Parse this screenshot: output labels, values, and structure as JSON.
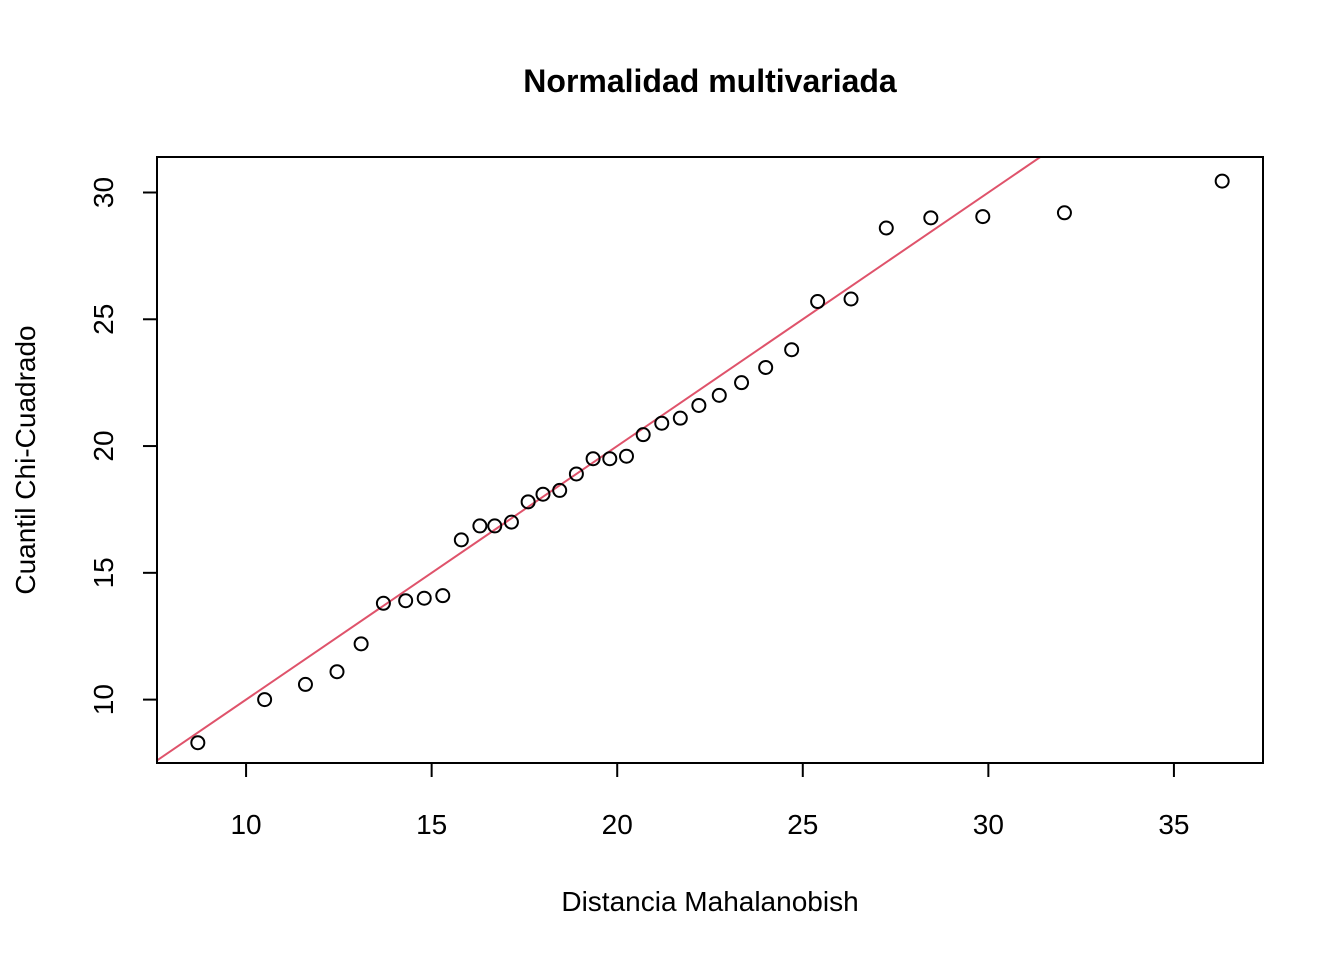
{
  "chart_data": {
    "type": "scatter",
    "title": "Normalidad multivariada",
    "xlabel": "Distancia Mahalanobish",
    "ylabel": "Cuantil Chi-Cuadrado",
    "xlim": [
      7.6,
      37.4
    ],
    "ylim": [
      7.5,
      31.4
    ],
    "xticks": [
      10,
      15,
      20,
      25,
      30,
      35
    ],
    "yticks": [
      10,
      15,
      20,
      25,
      30
    ],
    "grid": false,
    "points": [
      {
        "x": 8.7,
        "y": 8.3
      },
      {
        "x": 10.5,
        "y": 10.0
      },
      {
        "x": 11.6,
        "y": 10.6
      },
      {
        "x": 12.45,
        "y": 11.1
      },
      {
        "x": 13.1,
        "y": 12.2
      },
      {
        "x": 13.7,
        "y": 13.8
      },
      {
        "x": 14.3,
        "y": 13.9
      },
      {
        "x": 14.8,
        "y": 14.0
      },
      {
        "x": 15.3,
        "y": 14.1
      },
      {
        "x": 15.8,
        "y": 16.3
      },
      {
        "x": 16.3,
        "y": 16.85
      },
      {
        "x": 16.7,
        "y": 16.85
      },
      {
        "x": 17.15,
        "y": 17.0
      },
      {
        "x": 17.6,
        "y": 17.8
      },
      {
        "x": 18.0,
        "y": 18.1
      },
      {
        "x": 18.45,
        "y": 18.25
      },
      {
        "x": 18.9,
        "y": 18.9
      },
      {
        "x": 19.35,
        "y": 19.5
      },
      {
        "x": 19.8,
        "y": 19.5
      },
      {
        "x": 20.25,
        "y": 19.6
      },
      {
        "x": 20.7,
        "y": 20.45
      },
      {
        "x": 21.2,
        "y": 20.9
      },
      {
        "x": 21.7,
        "y": 21.1
      },
      {
        "x": 22.2,
        "y": 21.6
      },
      {
        "x": 22.75,
        "y": 22.0
      },
      {
        "x": 23.35,
        "y": 22.5
      },
      {
        "x": 24.0,
        "y": 23.1
      },
      {
        "x": 24.7,
        "y": 23.8
      },
      {
        "x": 25.4,
        "y": 25.7
      },
      {
        "x": 26.3,
        "y": 25.8
      },
      {
        "x": 27.25,
        "y": 28.6
      },
      {
        "x": 28.45,
        "y": 29.0
      },
      {
        "x": 29.85,
        "y": 29.05
      },
      {
        "x": 32.05,
        "y": 29.2
      },
      {
        "x": 36.3,
        "y": 30.45
      }
    ],
    "reference_line": {
      "intercept": 0,
      "slope": 1,
      "color": "#DF536B"
    },
    "point_color": "#000000"
  }
}
